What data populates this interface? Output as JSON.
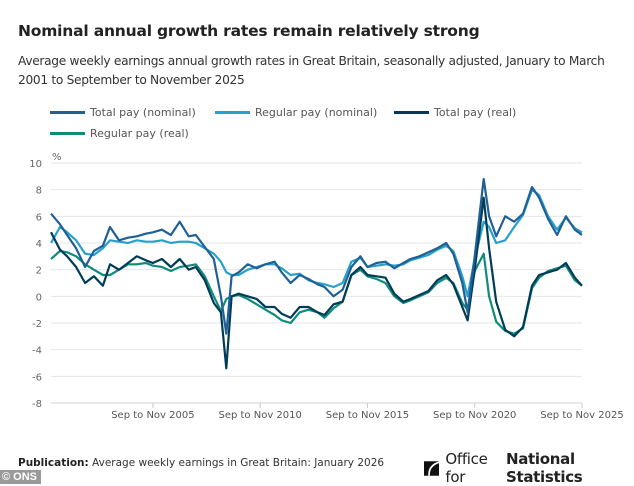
{
  "header": {
    "title": "Nominal annual growth rates remain relatively strong",
    "subtitle": "Average weekly earnings annual growth rates in Great Britain, seasonally adjusted, January to March 2001 to September to November 2025"
  },
  "footer": {
    "publication_label": "Publication:",
    "publication_text": "Average weekly earnings in Great Britain: January 2026",
    "logo_text_1": "Office for",
    "logo_text_2": "National Statistics",
    "credit": "© ONS"
  },
  "chart_data": {
    "type": "line",
    "title": "Nominal annual growth rates remain relatively strong",
    "ylabel": "%",
    "xlabel": "",
    "ylim": [
      -8,
      10
    ],
    "yticks": [
      10,
      8,
      6,
      4,
      2,
      0,
      -2,
      -4,
      -6,
      -8
    ],
    "xlim": [
      2001.08,
      2025.83
    ],
    "xticks": [
      {
        "x": 2005.83,
        "label": "Sep to Nov 2005"
      },
      {
        "x": 2010.83,
        "label": "Sep to Nov 2010"
      },
      {
        "x": 2015.83,
        "label": "Sep to Nov 2015"
      },
      {
        "x": 2020.83,
        "label": "Sep to Nov 2020"
      },
      {
        "x": 2025.83,
        "label": "Sep to Nov 2025"
      }
    ],
    "grid": true,
    "legend_position": "top",
    "x": [
      2001.08,
      2001.5,
      2001.83,
      2002.25,
      2002.67,
      2003.08,
      2003.5,
      2003.83,
      2004.25,
      2004.67,
      2005.08,
      2005.5,
      2005.83,
      2006.25,
      2006.67,
      2007.08,
      2007.5,
      2007.83,
      2008.25,
      2008.67,
      2009.0,
      2009.25,
      2009.5,
      2009.83,
      2010.25,
      2010.67,
      2011.08,
      2011.5,
      2011.83,
      2012.25,
      2012.67,
      2013.08,
      2013.5,
      2013.83,
      2014.25,
      2014.67,
      2015.08,
      2015.5,
      2015.83,
      2016.25,
      2016.67,
      2017.08,
      2017.5,
      2017.83,
      2018.25,
      2018.67,
      2019.08,
      2019.5,
      2019.83,
      2020.25,
      2020.5,
      2020.83,
      2021.25,
      2021.5,
      2021.83,
      2022.25,
      2022.67,
      2023.08,
      2023.5,
      2023.83,
      2024.25,
      2024.67,
      2025.08,
      2025.5,
      2025.83
    ],
    "series": [
      {
        "name": "Total pay (nominal)",
        "color": "#206095",
        "values": [
          6.2,
          5.4,
          4.6,
          3.6,
          2.2,
          3.4,
          3.8,
          5.2,
          4.2,
          4.4,
          4.5,
          4.7,
          4.8,
          5.0,
          4.6,
          5.6,
          4.5,
          4.6,
          3.7,
          2.8,
          0.0,
          -2.8,
          1.5,
          1.8,
          2.4,
          2.1,
          2.4,
          2.6,
          1.8,
          1.0,
          1.6,
          1.3,
          0.9,
          0.7,
          0.0,
          0.5,
          2.2,
          3.0,
          2.2,
          2.5,
          2.6,
          2.1,
          2.5,
          2.8,
          3.0,
          3.3,
          3.6,
          4.0,
          3.2,
          1.0,
          -1.2,
          3.0,
          8.8,
          6.0,
          4.5,
          6.0,
          5.6,
          6.2,
          8.2,
          7.4,
          5.8,
          4.6,
          6.0,
          5.0,
          4.6
        ]
      },
      {
        "name": "Regular pay (nominal)",
        "color": "#27a0cc",
        "values": [
          4.0,
          5.2,
          4.8,
          4.2,
          3.2,
          3.1,
          3.6,
          4.2,
          4.1,
          4.0,
          4.2,
          4.1,
          4.1,
          4.2,
          4.0,
          4.1,
          4.1,
          4.0,
          3.6,
          3.2,
          2.6,
          1.8,
          1.6,
          1.6,
          2.0,
          2.2,
          2.4,
          2.4,
          2.1,
          1.6,
          1.7,
          1.2,
          1.0,
          0.9,
          0.7,
          1.0,
          2.6,
          2.9,
          2.2,
          2.3,
          2.4,
          2.3,
          2.4,
          2.7,
          2.9,
          3.1,
          3.5,
          3.8,
          3.4,
          1.5,
          0.0,
          2.8,
          5.6,
          5.2,
          4.0,
          4.2,
          5.2,
          6.1,
          8.0,
          7.6,
          6.0,
          5.0,
          5.9,
          5.1,
          4.8
        ]
      },
      {
        "name": "Total pay (real)",
        "color": "#003c57",
        "values": [
          4.8,
          3.5,
          3.0,
          2.2,
          1.0,
          1.5,
          0.8,
          2.4,
          2.0,
          2.5,
          3.0,
          2.7,
          2.5,
          2.8,
          2.2,
          2.8,
          2.0,
          2.2,
          1.2,
          -0.5,
          -1.2,
          -5.4,
          0.0,
          0.2,
          0.0,
          -0.2,
          -0.8,
          -0.8,
          -1.3,
          -1.6,
          -0.8,
          -0.8,
          -1.2,
          -1.4,
          -0.6,
          -0.4,
          1.6,
          2.2,
          1.6,
          1.5,
          1.4,
          0.2,
          -0.4,
          -0.2,
          0.1,
          0.4,
          1.2,
          1.6,
          0.9,
          -0.8,
          -1.8,
          2.0,
          7.4,
          3.6,
          -0.4,
          -2.5,
          -3.0,
          -2.3,
          0.8,
          1.6,
          1.8,
          2.0,
          2.5,
          1.4,
          0.8
        ]
      },
      {
        "name": "Regular pay (real)",
        "color": "#118c7b",
        "values": [
          2.8,
          3.4,
          3.3,
          3.0,
          2.4,
          2.0,
          1.6,
          1.6,
          2.0,
          2.4,
          2.4,
          2.5,
          2.3,
          2.2,
          1.9,
          2.2,
          2.3,
          2.4,
          1.5,
          0.0,
          -1.1,
          -0.2,
          0.0,
          0.1,
          -0.2,
          -0.6,
          -1.0,
          -1.4,
          -1.8,
          -2.0,
          -1.2,
          -1.0,
          -1.2,
          -1.6,
          -0.9,
          -0.4,
          1.6,
          2.0,
          1.5,
          1.3,
          1.0,
          0.0,
          -0.5,
          -0.3,
          0.0,
          0.3,
          1.0,
          1.4,
          1.0,
          -0.5,
          -1.0,
          1.9,
          3.2,
          0.0,
          -1.9,
          -2.6,
          -2.8,
          -2.4,
          0.6,
          1.4,
          1.9,
          2.1,
          2.3,
          1.2,
          0.8
        ]
      }
    ]
  }
}
